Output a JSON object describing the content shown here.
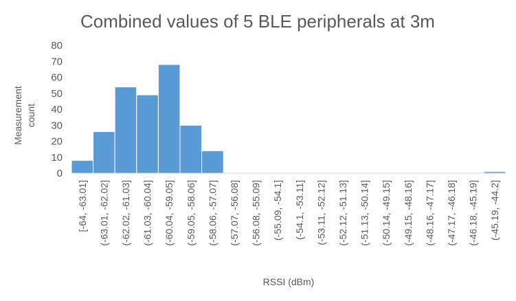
{
  "chart_data": {
    "type": "bar",
    "title": "Combined values of 5 BLE peripherals at 3m",
    "xlabel": "RSSI (dBm)",
    "ylabel_lines": [
      "Measurement",
      "count"
    ],
    "ylim": [
      0,
      80
    ],
    "yticks": [
      0,
      10,
      20,
      30,
      40,
      50,
      60,
      70,
      80
    ],
    "grid": false,
    "categories": [
      "[-64, -63.01]",
      "(-63.01, -62.02]",
      "(-62.02, -61.03]",
      "(-61.03, -60.04]",
      "(-60.04, -59.05]",
      "(-59.05, -58.06]",
      "(-58.06, -57.07]",
      "(-57.07, -56.08]",
      "(-56.08, -55.09]",
      "(-55.09, -54.1]",
      "(-54.1, -53.11]",
      "(-53.11, -52.12]",
      "(-52.12, -51.13]",
      "(-51.13, -50.14]",
      "(-50.14, -49.15]",
      "(-49.15, -48.16]",
      "(-48.16, -47.17]",
      "(-47.17, -46.18]",
      "(-46.18, -45.19]",
      "(-45.19, -44.2]"
    ],
    "values": [
      8,
      26,
      54,
      49,
      68,
      30,
      14,
      0,
      0,
      0,
      0,
      0,
      0,
      0,
      0,
      0,
      0,
      0,
      0,
      1
    ],
    "colors": {
      "bar": "#5b9bd5",
      "bar_edge": "#ffffff",
      "axis": "#d9d9d9",
      "text": "#595959"
    }
  }
}
